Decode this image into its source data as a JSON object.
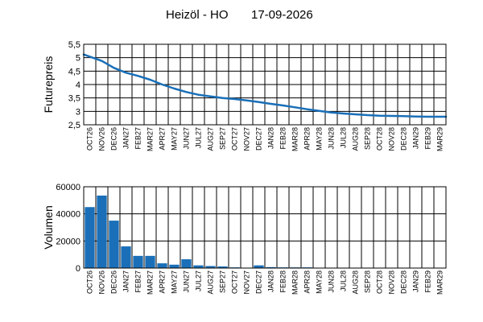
{
  "title": {
    "instrument": "Heizöl - HO",
    "date": "17-09-2026"
  },
  "chart_data": [
    {
      "type": "line",
      "ylabel": "Futurepreis",
      "ylim": [
        2.5,
        5.5
      ],
      "yticks": [
        "2,5",
        "3",
        "3,5",
        "4",
        "4,5",
        "5",
        "5,5"
      ],
      "grid": true,
      "color": "#1a6fb8",
      "categories": [
        "OCT26",
        "NOV26",
        "DEC26",
        "JAN27",
        "FEB27",
        "MAR27",
        "APR27",
        "MAY27",
        "JUN27",
        "JUL27",
        "AUG27",
        "SEP27",
        "OCT27",
        "NOV27",
        "DEC27",
        "JAN28",
        "FEB28",
        "MAR28",
        "APR28",
        "MAY28",
        "JUN28",
        "JUL28",
        "AUG28",
        "SEP28",
        "OCT28",
        "NOV28",
        "DEC28",
        "JAN29",
        "FEB29",
        "MAR29"
      ],
      "values": [
        5.12,
        4.88,
        4.62,
        4.44,
        4.32,
        4.18,
        4.0,
        3.85,
        3.72,
        3.62,
        3.56,
        3.5,
        3.46,
        3.41,
        3.35,
        3.28,
        3.22,
        3.15,
        3.08,
        3.02,
        2.96,
        2.92,
        2.89,
        2.86,
        2.84,
        2.83,
        2.82,
        2.81,
        2.8,
        2.8
      ]
    },
    {
      "type": "bar",
      "ylabel": "Volumen",
      "ylim": [
        0,
        60000
      ],
      "yticks": [
        "0",
        "20000",
        "40000",
        "60000"
      ],
      "grid": true,
      "color": "#1a6fb8",
      "categories": [
        "OCT26",
        "NOV26",
        "DEC26",
        "JAN27",
        "FEB27",
        "MAR27",
        "APR27",
        "MAY27",
        "JUN27",
        "JUL27",
        "AUG27",
        "SEP27",
        "OCT27",
        "NOV27",
        "DEC27",
        "JAN28",
        "FEB28",
        "MAR28",
        "APR28",
        "MAY28",
        "JUN28",
        "JUL28",
        "AUG28",
        "SEP28",
        "OCT28",
        "NOV28",
        "DEC28",
        "JAN29",
        "FEB29",
        "MAR29"
      ],
      "values": [
        45000,
        53500,
        35000,
        16000,
        9000,
        9000,
        3500,
        2500,
        6500,
        2000,
        1500,
        1200,
        500,
        300,
        2000,
        700,
        500,
        500,
        500,
        300,
        300,
        300,
        300,
        300,
        200,
        200,
        200,
        200,
        0,
        0
      ]
    }
  ]
}
